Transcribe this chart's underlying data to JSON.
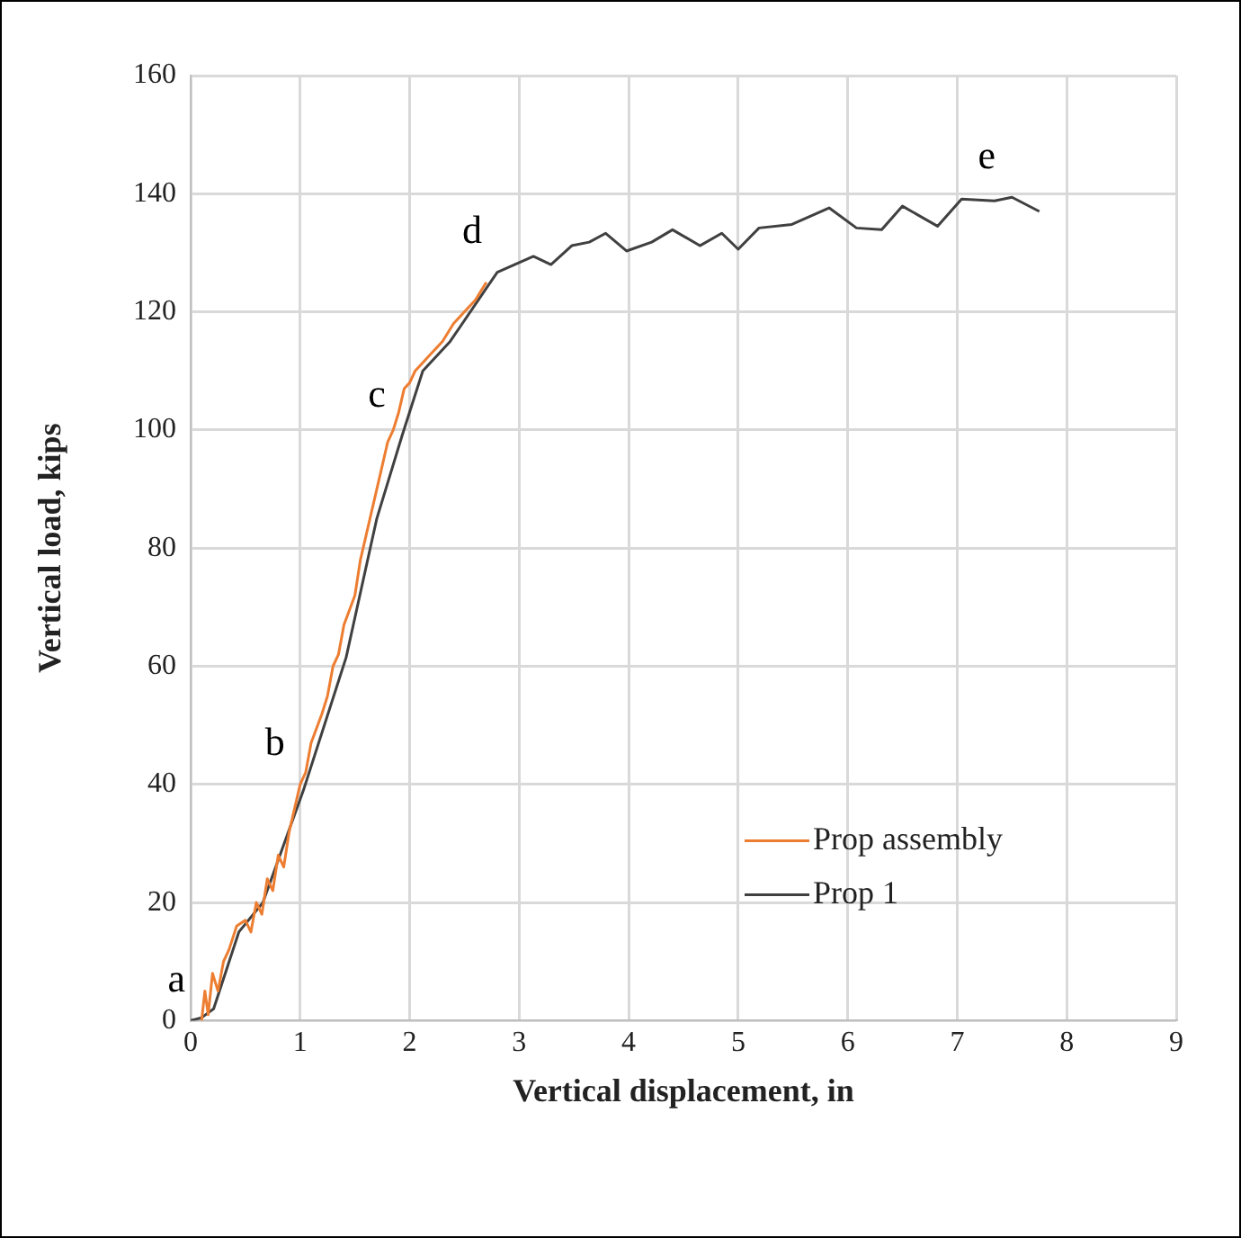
{
  "chart_data": {
    "type": "line",
    "xlabel": "Vertical displacement, in",
    "ylabel": "Vertical load, kips",
    "xlim": [
      0,
      9
    ],
    "xticks": [
      0,
      1,
      2,
      3,
      4,
      5,
      6,
      7,
      8,
      9
    ],
    "ylim": [
      0,
      160
    ],
    "yticks": [
      0,
      20,
      40,
      60,
      80,
      100,
      120,
      140,
      160
    ],
    "grid": true,
    "legend": "bottom right",
    "marker": "none",
    "line_style": "solid",
    "series": [
      {
        "name": "Prop assembly",
        "color": "#ed7d31",
        "x": [
          0.1,
          0.13,
          0.16,
          0.2,
          0.25,
          0.3,
          0.35,
          0.42,
          0.5,
          0.55,
          0.6,
          0.65,
          0.7,
          0.75,
          0.8,
          0.85,
          0.9,
          0.95,
          1.0,
          1.05,
          1.1,
          1.2,
          1.25,
          1.3,
          1.35,
          1.4,
          1.5,
          1.55,
          1.6,
          1.65,
          1.7,
          1.75,
          1.8,
          1.85,
          1.9,
          1.95,
          2.0,
          2.05,
          2.1,
          2.2,
          2.3,
          2.4,
          2.5,
          2.6,
          2.7
        ],
        "values": [
          0,
          5,
          1,
          8,
          5,
          10,
          12,
          16,
          17,
          15,
          20,
          18,
          24,
          22,
          28,
          26,
          32,
          36,
          40,
          42,
          47,
          52,
          55,
          60,
          62,
          67,
          72,
          78,
          82,
          86,
          90,
          94,
          98,
          100,
          103,
          107,
          108,
          110,
          111,
          113,
          115,
          118,
          120,
          122,
          125
        ]
      },
      {
        "name": "Prop 1",
        "color": "#404040",
        "x": [
          0,
          0.1,
          0.21,
          0.44,
          0.66,
          1.03,
          1.42,
          1.64,
          1.7,
          1.93,
          2.12,
          2.37,
          2.7,
          2.8,
          3.13,
          3.29,
          3.48,
          3.64,
          3.79,
          3.98,
          4.21,
          4.4,
          4.65,
          4.85,
          5.0,
          5.19,
          5.49,
          5.83,
          6.08,
          6.31,
          6.5,
          6.82,
          7.04,
          7.34,
          7.5,
          7.75
        ],
        "values": [
          0,
          0.5,
          2,
          15,
          20,
          39,
          61.5,
          80,
          85,
          99,
          110,
          115,
          124,
          126.7,
          129.4,
          128,
          131.2,
          131.8,
          133.3,
          130.3,
          131.8,
          133.9,
          131.2,
          133.3,
          130.6,
          134.2,
          134.8,
          137.6,
          134.2,
          133.9,
          137.9,
          134.5,
          139.1,
          138.8,
          139.4,
          137
        ]
      }
    ],
    "annotations": [
      {
        "text": "a",
        "x": 0.1,
        "y": 0
      },
      {
        "text": "b",
        "x": 1.0,
        "y": 40
      },
      {
        "text": "c",
        "x": 1.93,
        "y": 99
      },
      {
        "text": "d",
        "x": 2.8,
        "y": 126.7
      },
      {
        "text": "e",
        "x": 7.5,
        "y": 139.4
      }
    ]
  }
}
